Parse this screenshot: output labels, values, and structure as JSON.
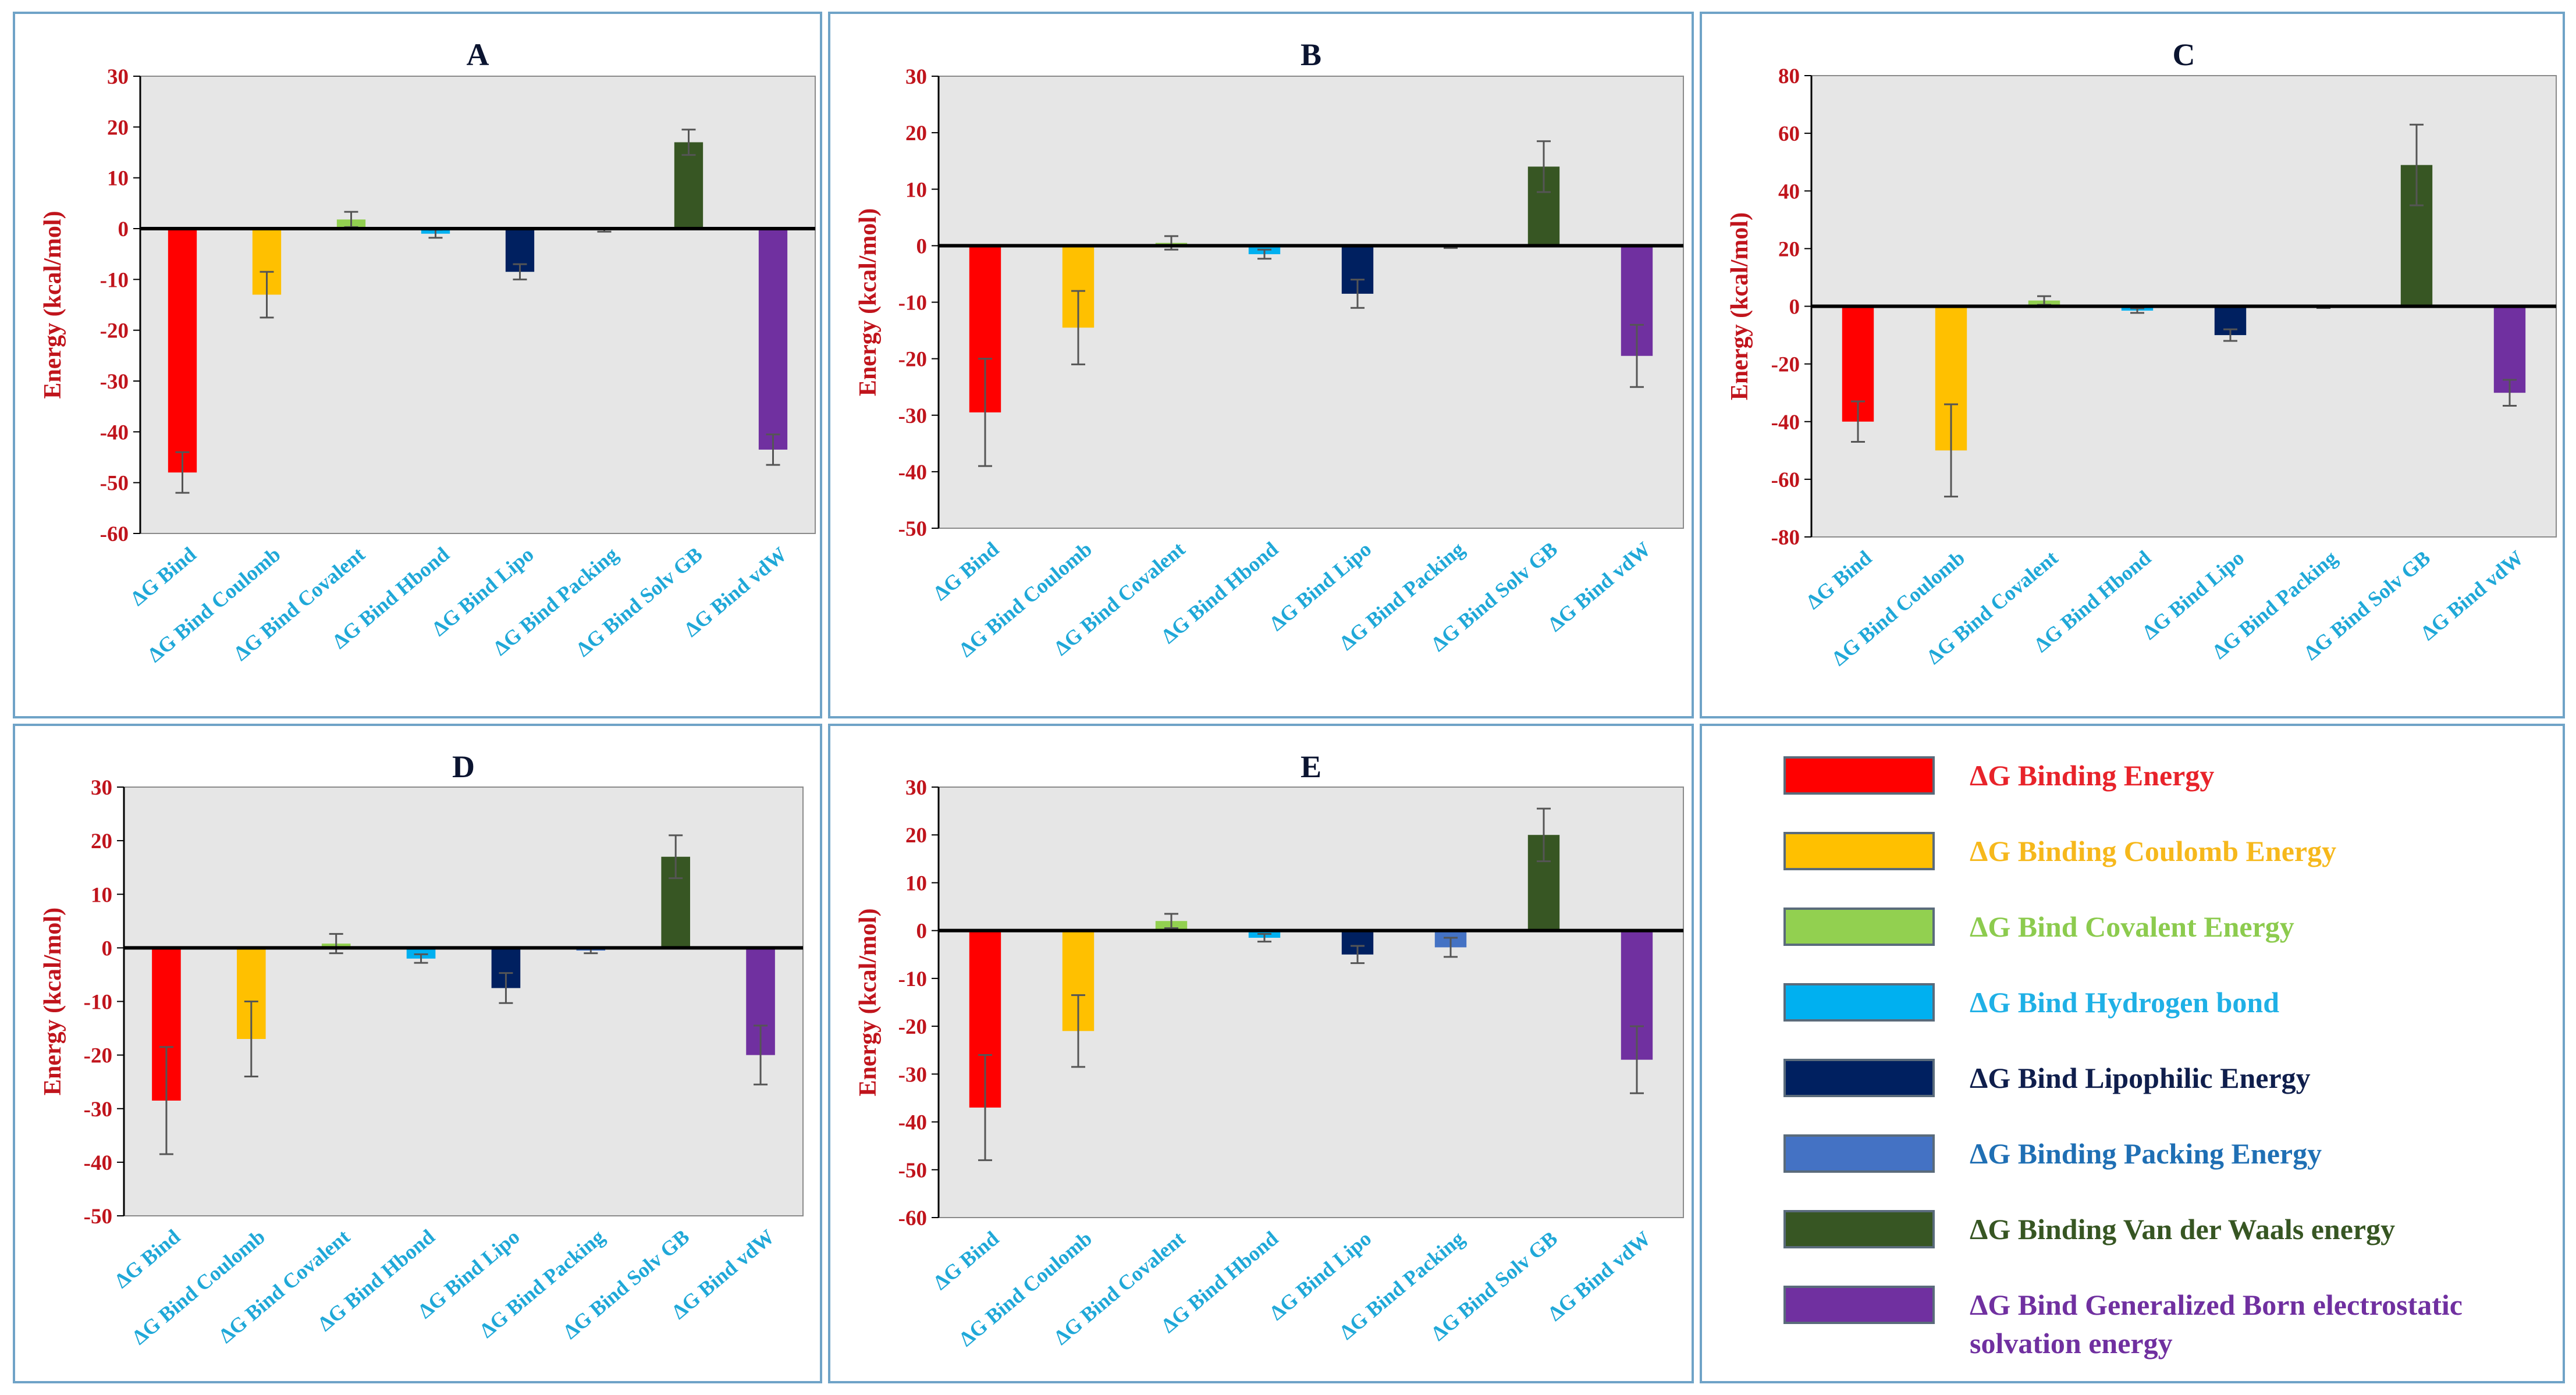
{
  "chart_data": [
    {
      "type": "bar",
      "title": "A",
      "ylabel": "Energy (kcal/mol)",
      "xlabel": "",
      "ylim": [
        -60,
        30
      ],
      "yticks": [
        30,
        20,
        10,
        0,
        -10,
        -20,
        -30,
        -40,
        -50,
        -60
      ],
      "categories": [
        "ΔG Bind",
        "ΔG Bind Coulomb",
        "ΔG Bind Covalent",
        "ΔG Bind Hbond",
        "ΔG Bind Lipo",
        "ΔG Bind Packing",
        "ΔG Bind Solv GB",
        "ΔG Bind vdW"
      ],
      "values": [
        -48,
        -13,
        1.8,
        -1,
        -8.5,
        -0.3,
        17,
        -43.5
      ],
      "errors": [
        4,
        4.5,
        1.5,
        0.8,
        1.5,
        0.3,
        2.5,
        3
      ]
    },
    {
      "type": "bar",
      "title": "B",
      "ylabel": "Energy (kcal/mol)",
      "xlabel": "",
      "ylim": [
        -50,
        30
      ],
      "yticks": [
        30,
        20,
        10,
        0,
        -10,
        -20,
        -30,
        -40,
        -50
      ],
      "categories": [
        "ΔG Bind",
        "ΔG Bind Coulomb",
        "ΔG Bind Covalent",
        "ΔG Bind Hbond",
        "ΔG Bind Lipo",
        "ΔG Bind Packing",
        "ΔG Bind Solv GB",
        "ΔG Bind vdW"
      ],
      "values": [
        -29.5,
        -14.5,
        0.5,
        -1.5,
        -8.5,
        -0.2,
        14,
        -19.5
      ],
      "errors": [
        9.5,
        6.5,
        1.2,
        0.8,
        2.5,
        0.2,
        4.5,
        5.5
      ]
    },
    {
      "type": "bar",
      "title": "C",
      "ylabel": "Energy (kcal/mol)",
      "xlabel": "",
      "ylim": [
        -80,
        80
      ],
      "yticks": [
        80,
        60,
        40,
        20,
        0,
        -20,
        -40,
        -60,
        -80
      ],
      "categories": [
        "ΔG Bind",
        "ΔG Bind Coulomb",
        "ΔG Bind Covalent",
        "ΔG Bind Hbond",
        "ΔG Bind Lipo",
        "ΔG Bind Packing",
        "ΔG Bind Solv GB",
        "ΔG Bind vdW"
      ],
      "values": [
        -40,
        -50,
        2,
        -1.5,
        -10,
        -0.3,
        49,
        -30
      ],
      "errors": [
        7,
        16,
        1.5,
        0.8,
        2,
        0.3,
        14,
        4.5
      ]
    },
    {
      "type": "bar",
      "title": "D",
      "ylabel": "Energy (kcal/mol)",
      "xlabel": "",
      "ylim": [
        -50,
        30
      ],
      "yticks": [
        30,
        20,
        10,
        0,
        -10,
        -20,
        -30,
        -40,
        -50
      ],
      "categories": [
        "ΔG Bind",
        "ΔG Bind Coulomb",
        "ΔG Bind Covalent",
        "ΔG Bind Hbond",
        "ΔG Bind Lipo",
        "ΔG Bind Packing",
        "ΔG Bind Solv GB",
        "ΔG Bind vdW"
      ],
      "values": [
        -28.5,
        -17,
        0.8,
        -2,
        -7.5,
        -0.5,
        17,
        -20
      ],
      "errors": [
        10,
        7,
        1.8,
        0.8,
        2.8,
        0.5,
        4,
        5.5
      ]
    },
    {
      "type": "bar",
      "title": "E",
      "ylabel": "Energy (kcal/mol)",
      "xlabel": "",
      "ylim": [
        -60,
        30
      ],
      "yticks": [
        30,
        20,
        10,
        0,
        -10,
        -20,
        -30,
        -40,
        -50,
        -60
      ],
      "categories": [
        "ΔG Bind",
        "ΔG Bind Coulomb",
        "ΔG Bind Covalent",
        "ΔG Bind Hbond",
        "ΔG Bind Lipo",
        "ΔG Bind Packing",
        "ΔG Bind Solv GB",
        "ΔG Bind vdW"
      ],
      "values": [
        -37,
        -21,
        2,
        -1.5,
        -5,
        -3.5,
        20,
        -27
      ],
      "errors": [
        11,
        7.5,
        1.5,
        0.8,
        1.8,
        2,
        5.5,
        7
      ]
    }
  ],
  "series_colors": [
    "#ff0000",
    "#ffc000",
    "#92d050",
    "#00b0f0",
    "#002060",
    "#4472c4",
    "#375623",
    "#7030a0"
  ],
  "legend": [
    {
      "label": "ΔG Binding Energy",
      "color": "#ff0000",
      "text_color": "#e8232a"
    },
    {
      "label": "ΔG Binding Coulomb Energy",
      "color": "#ffc000",
      "text_color": "#f6b81c"
    },
    {
      "label": "ΔG Bind Covalent Energy",
      "color": "#92d050",
      "text_color": "#8ccb4e"
    },
    {
      "label": "ΔG Bind Hydrogen bond",
      "color": "#00b0f0",
      "text_color": "#1fb0e6"
    },
    {
      "label": "ΔG Bind Lipophilic Energy",
      "color": "#002060",
      "text_color": "#0f1e4c"
    },
    {
      "label": "ΔG Binding Packing Energy",
      "color": "#4472c4",
      "text_color": "#1f6fb4"
    },
    {
      "label": "ΔG Binding Van der Waals energy",
      "color": "#375623",
      "text_color": "#375623"
    },
    {
      "label": "ΔG Bind Generalized Born electrostatic solvation energy",
      "color": "#7030a0",
      "text_color": "#7030a0"
    }
  ]
}
